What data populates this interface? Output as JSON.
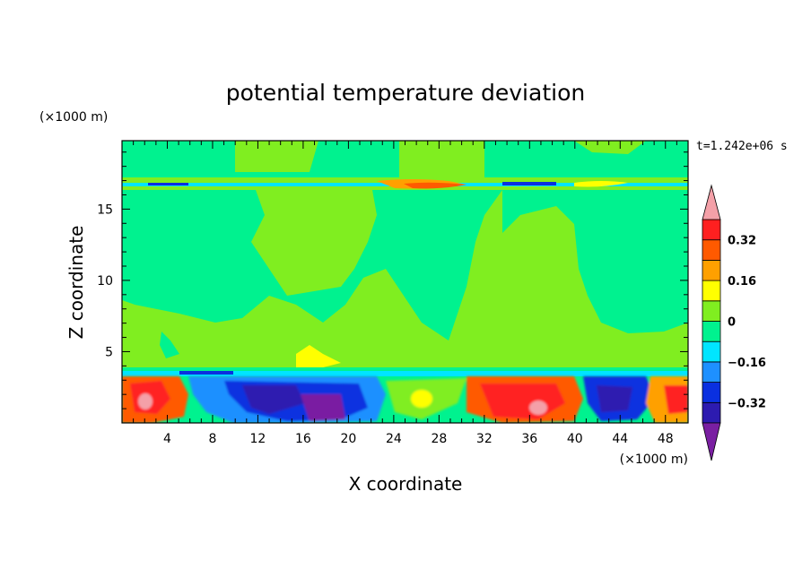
{
  "chart_data": {
    "type": "heatmap",
    "title": "potential temperature deviation",
    "xlabel": "X coordinate",
    "ylabel": "Z coordinate",
    "x_unit": "(×1000 m)",
    "y_unit": "(×1000 m)",
    "time_label": "t=1.242e+06 s",
    "xlim": [
      0,
      50
    ],
    "ylim": [
      0,
      19.8
    ],
    "x_ticks": [
      4,
      8,
      12,
      16,
      20,
      24,
      28,
      32,
      36,
      40,
      44,
      48
    ],
    "x_tick_labels": [
      "4",
      "8",
      "12",
      "16",
      "20",
      "24",
      "28",
      "32",
      "36",
      "40",
      "44",
      "48"
    ],
    "y_ticks": [
      5,
      10,
      15
    ],
    "y_tick_labels": [
      "5",
      "10",
      "15"
    ],
    "colorbar": {
      "levels": [
        -0.4,
        -0.32,
        -0.24,
        -0.16,
        -0.08,
        0,
        0.08,
        0.16,
        0.24,
        0.32,
        0.4
      ],
      "labels": [
        "0.32",
        "0.16",
        "0",
        "−0.16",
        "−0.32"
      ],
      "label_values": [
        0.32,
        0.16,
        0,
        -0.16,
        -0.32
      ],
      "colors": [
        "#7a1fa2",
        "#2d1bb0",
        "#0a30e0",
        "#1e90ff",
        "#00e5ff",
        "#00f28f",
        "#80ee20",
        "#ffff00",
        "#ffa000",
        "#ff5a00",
        "#ff2020",
        "#f4a0a8"
      ],
      "extend": "both"
    },
    "fields": {
      "upper_mixed": "greens",
      "tropopause_z": 16.9,
      "boundary_layer_top_z": 3.4,
      "boundary_layer": "strong alternating warm/cold anomalies"
    }
  }
}
